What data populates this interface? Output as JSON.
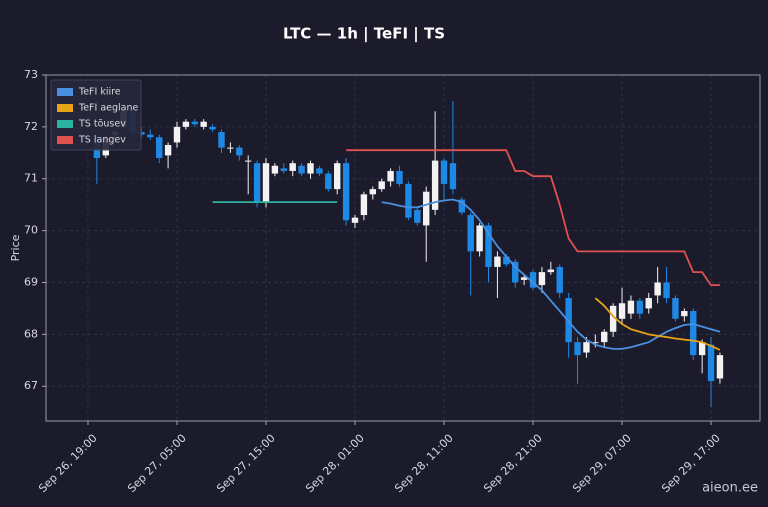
{
  "chart_data": {
    "type": "candlestick",
    "title": "LTC — 1h  |  TeFI  |  TS",
    "ylabel": "Price",
    "watermark": "aieon.ee",
    "grid": true,
    "legend": "upper left",
    "up_color": "#f2f2f2",
    "down_color": "#1e88e5",
    "ylim": [
      66.33,
      73
    ],
    "yticks": [
      67,
      68,
      69,
      70,
      71,
      72,
      73
    ],
    "xlim": [
      "Sep 26, 14:17",
      "Sep 29, 22:30"
    ],
    "xticks": [
      "Sep 26, 19:00",
      "Sep 27, 05:00",
      "Sep 27, 15:00",
      "Sep 28, 01:00",
      "Sep 28, 11:00",
      "Sep 28, 21:00",
      "Sep 29, 07:00",
      "Sep 29, 17:00"
    ],
    "x": [
      "Sep 26, 20:00",
      "Sep 26, 21:00",
      "Sep 26, 22:00",
      "Sep 26, 23:00",
      "Sep 27, 00:00",
      "Sep 27, 01:00",
      "Sep 27, 02:00",
      "Sep 27, 03:00",
      "Sep 27, 04:00",
      "Sep 27, 05:00",
      "Sep 27, 06:00",
      "Sep 27, 07:00",
      "Sep 27, 08:00",
      "Sep 27, 09:00",
      "Sep 27, 10:00",
      "Sep 27, 11:00",
      "Sep 27, 12:00",
      "Sep 27, 13:00",
      "Sep 27, 14:00",
      "Sep 27, 15:00",
      "Sep 27, 16:00",
      "Sep 27, 17:00",
      "Sep 27, 18:00",
      "Sep 27, 19:00",
      "Sep 27, 20:00",
      "Sep 27, 21:00",
      "Sep 27, 22:00",
      "Sep 27, 23:00",
      "Sep 28, 00:00",
      "Sep 28, 01:00",
      "Sep 28, 02:00",
      "Sep 28, 03:00",
      "Sep 28, 04:00",
      "Sep 28, 05:00",
      "Sep 28, 06:00",
      "Sep 28, 07:00",
      "Sep 28, 08:00",
      "Sep 28, 09:00",
      "Sep 28, 10:00",
      "Sep 28, 11:00",
      "Sep 28, 12:00",
      "Sep 28, 13:00",
      "Sep 28, 14:00",
      "Sep 28, 15:00",
      "Sep 28, 16:00",
      "Sep 28, 17:00",
      "Sep 28, 18:00",
      "Sep 28, 19:00",
      "Sep 28, 20:00",
      "Sep 28, 21:00",
      "Sep 28, 22:00",
      "Sep 28, 23:00",
      "Sep 29, 00:00",
      "Sep 29, 01:00",
      "Sep 29, 02:00",
      "Sep 29, 03:00",
      "Sep 29, 04:00",
      "Sep 29, 05:00",
      "Sep 29, 06:00",
      "Sep 29, 07:00",
      "Sep 29, 08:00",
      "Sep 29, 09:00",
      "Sep 29, 10:00",
      "Sep 29, 11:00",
      "Sep 29, 12:00",
      "Sep 29, 13:00",
      "Sep 29, 14:00",
      "Sep 29, 15:00",
      "Sep 29, 16:00",
      "Sep 29, 17:00",
      "Sep 29, 18:00"
    ],
    "open": [
      71.8,
      71.45,
      71.85,
      72.0,
      72.3,
      71.9,
      71.85,
      71.8,
      71.45,
      71.7,
      72.0,
      72.1,
      72.0,
      72.0,
      71.9,
      71.6,
      71.6,
      71.35,
      71.3,
      70.55,
      71.1,
      71.2,
      71.15,
      71.25,
      71.1,
      71.2,
      71.1,
      70.8,
      71.3,
      70.15,
      70.3,
      70.7,
      70.8,
      70.95,
      71.15,
      70.9,
      70.4,
      70.1,
      70.4,
      71.35,
      71.3,
      70.6,
      70.3,
      69.6,
      70.1,
      69.3,
      69.5,
      69.4,
      69.05,
      69.2,
      68.95,
      69.2,
      69.3,
      68.7,
      67.85,
      67.65,
      67.85,
      67.85,
      68.05,
      68.3,
      68.4,
      68.65,
      68.5,
      68.75,
      69.0,
      68.7,
      68.35,
      68.45,
      67.6,
      67.8,
      67.15
    ],
    "high": [
      71.9,
      71.85,
      71.95,
      72.35,
      72.35,
      72.0,
      71.95,
      71.85,
      71.7,
      72.1,
      72.15,
      72.15,
      72.15,
      72.05,
      71.95,
      71.7,
      71.65,
      71.45,
      71.35,
      71.4,
      71.3,
      71.3,
      71.35,
      71.3,
      71.35,
      71.25,
      71.15,
      71.35,
      71.4,
      70.3,
      70.75,
      70.85,
      71.0,
      71.2,
      71.25,
      70.95,
      70.45,
      70.85,
      72.3,
      71.4,
      72.5,
      70.65,
      70.35,
      70.15,
      70.15,
      69.6,
      69.55,
      69.45,
      69.15,
      69.25,
      69.3,
      69.4,
      69.35,
      68.8,
      67.95,
      67.95,
      68.0,
      68.1,
      68.6,
      68.9,
      68.75,
      68.7,
      68.8,
      69.3,
      69.3,
      68.75,
      68.5,
      68.5,
      67.9,
      67.95,
      67.65
    ],
    "low": [
      70.9,
      71.4,
      71.8,
      71.95,
      71.85,
      71.8,
      71.75,
      71.3,
      71.2,
      71.6,
      71.95,
      72.0,
      71.95,
      71.9,
      71.5,
      71.5,
      71.35,
      70.7,
      70.45,
      70.45,
      71.05,
      71.1,
      71.05,
      71.05,
      71.0,
      71.05,
      70.75,
      70.7,
      70.1,
      70.05,
      70.2,
      70.6,
      70.75,
      70.85,
      70.85,
      70.2,
      70.1,
      69.4,
      70.3,
      70.6,
      70.7,
      70.3,
      68.75,
      69.5,
      69.0,
      68.7,
      69.3,
      68.9,
      68.95,
      68.85,
      68.8,
      69.15,
      68.7,
      67.55,
      67.05,
      67.55,
      67.75,
      67.75,
      67.95,
      68.2,
      68.3,
      68.3,
      68.4,
      68.6,
      68.6,
      68.25,
      68.25,
      67.5,
      67.25,
      66.6,
      67.05
    ],
    "close": [
      71.4,
      71.8,
      71.9,
      72.3,
      71.9,
      71.85,
      71.8,
      71.4,
      71.65,
      72.0,
      72.1,
      72.05,
      72.1,
      71.95,
      71.6,
      71.6,
      71.45,
      71.35,
      70.55,
      71.3,
      71.25,
      71.15,
      71.3,
      71.1,
      71.3,
      71.1,
      70.8,
      71.3,
      70.2,
      70.25,
      70.7,
      70.8,
      70.95,
      71.15,
      70.9,
      70.25,
      70.15,
      70.75,
      71.35,
      70.9,
      70.8,
      70.35,
      69.6,
      70.1,
      69.3,
      69.5,
      69.35,
      69.0,
      69.1,
      68.9,
      69.2,
      69.25,
      68.8,
      67.85,
      67.6,
      67.85,
      67.85,
      68.05,
      68.55,
      68.6,
      68.65,
      68.4,
      68.7,
      69.0,
      68.7,
      68.3,
      68.45,
      67.6,
      67.85,
      67.1,
      67.6
    ],
    "series": [
      {
        "name": "TeFI kiire",
        "color": "#4a90e2",
        "values": [
          null,
          null,
          null,
          null,
          null,
          null,
          null,
          null,
          null,
          null,
          null,
          null,
          null,
          null,
          null,
          null,
          null,
          null,
          null,
          null,
          null,
          null,
          null,
          null,
          null,
          null,
          null,
          null,
          null,
          null,
          null,
          null,
          70.55,
          70.52,
          70.48,
          70.45,
          70.45,
          70.5,
          70.55,
          70.58,
          70.6,
          70.55,
          70.4,
          70.2,
          69.95,
          69.7,
          69.5,
          69.3,
          69.15,
          69.0,
          68.85,
          68.65,
          68.45,
          68.25,
          68.05,
          67.9,
          67.8,
          67.75,
          67.72,
          67.72,
          67.75,
          67.8,
          67.85,
          67.95,
          68.05,
          68.12,
          68.18,
          68.2,
          68.15,
          68.1,
          68.05
        ]
      },
      {
        "name": "TeFI aeglane",
        "color": "#e8a317",
        "values": [
          null,
          null,
          null,
          null,
          null,
          null,
          null,
          null,
          null,
          null,
          null,
          null,
          null,
          null,
          null,
          null,
          null,
          null,
          null,
          null,
          null,
          null,
          null,
          null,
          null,
          null,
          null,
          null,
          null,
          null,
          null,
          null,
          null,
          null,
          null,
          null,
          null,
          null,
          null,
          null,
          null,
          null,
          null,
          null,
          null,
          null,
          null,
          null,
          null,
          null,
          null,
          null,
          null,
          null,
          null,
          null,
          68.7,
          68.55,
          68.35,
          68.2,
          68.1,
          68.05,
          68.0,
          67.97,
          67.95,
          67.92,
          67.9,
          67.88,
          67.85,
          67.78,
          67.7
        ]
      },
      {
        "name": "TS tõusev",
        "color": "#2bb3a0",
        "values": [
          null,
          null,
          null,
          null,
          null,
          null,
          null,
          null,
          null,
          null,
          null,
          null,
          null,
          70.55,
          70.55,
          70.55,
          70.55,
          70.55,
          70.55,
          70.55,
          70.55,
          70.55,
          70.55,
          70.55,
          70.55,
          70.55,
          70.55,
          70.55,
          null,
          null,
          null,
          null,
          null,
          null,
          null,
          null,
          null,
          null,
          null,
          null,
          null,
          null,
          null,
          null,
          null,
          null,
          null,
          null,
          null,
          null,
          null,
          null,
          null,
          null,
          null,
          null,
          null,
          null,
          null,
          null,
          null,
          null,
          null,
          null,
          null,
          null,
          null,
          null,
          null,
          null,
          null
        ]
      },
      {
        "name": "TS langev",
        "color": "#e05252",
        "values": [
          null,
          null,
          null,
          null,
          null,
          null,
          null,
          null,
          null,
          null,
          null,
          null,
          null,
          null,
          null,
          null,
          null,
          null,
          null,
          null,
          null,
          null,
          null,
          null,
          null,
          null,
          null,
          null,
          71.55,
          71.55,
          71.55,
          71.55,
          71.55,
          71.55,
          71.55,
          71.55,
          71.55,
          71.55,
          71.55,
          71.55,
          71.55,
          71.55,
          71.55,
          71.55,
          71.55,
          71.55,
          71.55,
          71.15,
          71.15,
          71.05,
          71.05,
          71.05,
          70.5,
          69.85,
          69.6,
          69.6,
          69.6,
          69.6,
          69.6,
          69.6,
          69.6,
          69.6,
          69.6,
          69.6,
          69.6,
          69.6,
          69.6,
          69.2,
          69.2,
          68.95,
          68.95
        ]
      }
    ]
  }
}
